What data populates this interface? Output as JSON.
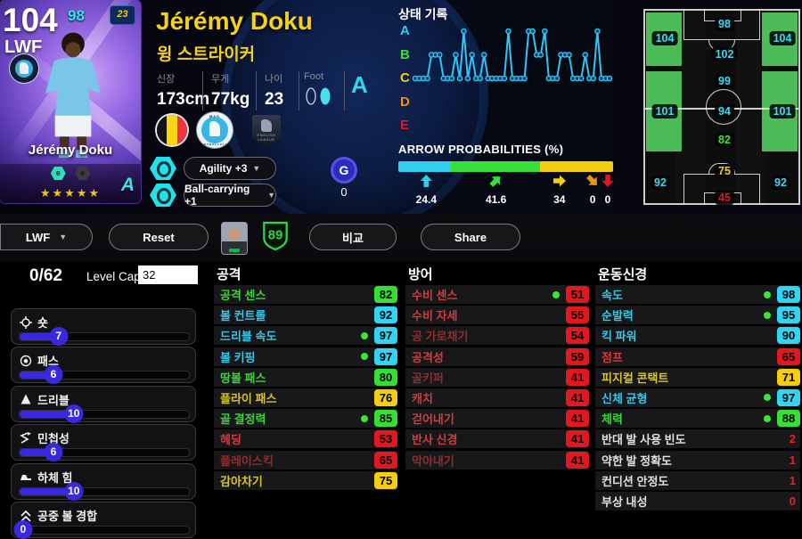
{
  "colors": {
    "cyan": "#3bd9f6",
    "green": "#45e23c",
    "yellow": "#f2d414",
    "red": "#e3171e",
    "red_dim": "#8f2d2d",
    "accent_blue": "#3a28e0"
  },
  "card": {
    "rating": "104",
    "boost_rating": "98",
    "position": "LWF",
    "player_name": "Jérémy Doku",
    "grade": "A",
    "stars": "★★★★★",
    "emblem": "23"
  },
  "header": {
    "name": "Jérémy Doku",
    "position_kr": "윙 스트라이커",
    "height_label": "신장",
    "height_value": "173cm",
    "weight_label": "무게",
    "weight_value": "77kg",
    "age_label": "나이",
    "age_value": "23",
    "foot_label": "Foot",
    "overall_grade": "A",
    "gp_letter": "G",
    "gp_value": "0",
    "club_badge_top": "MAS",
    "club_badge_bottom": "FOOTBALLCLUB",
    "league_badge_text": "ENGLISH LEAGUE",
    "skills": [
      {
        "label": "Agility +3"
      },
      {
        "label": "Ball-carrying +1"
      }
    ]
  },
  "condition": {
    "title": "상태 기록",
    "levels": [
      {
        "label": "A",
        "color": "#2fd0ee"
      },
      {
        "label": "B",
        "color": "#37e03a"
      },
      {
        "label": "C",
        "color": "#f2ce0d"
      },
      {
        "label": "D",
        "color": "#f0920e"
      },
      {
        "label": "E",
        "color": "#e3171e"
      }
    ],
    "history": [
      "C",
      "C",
      "C",
      "C",
      "B",
      "B",
      "B",
      "C",
      "C",
      "C",
      "B",
      "C",
      "A",
      "C",
      "B",
      "C",
      "C",
      "B",
      "C",
      "C",
      "C",
      "C",
      "C",
      "A",
      "C",
      "C",
      "C",
      "C",
      "A",
      "A",
      "B",
      "B",
      "A",
      "C",
      "C",
      "C",
      "B",
      "B",
      "B",
      "C",
      "C",
      "C",
      "B",
      "C",
      "C",
      "A",
      "C",
      "C",
      "C"
    ]
  },
  "arrow_probabilities": {
    "title": "ARROW PROBABILITIES (%)",
    "items": [
      {
        "direction": "up",
        "color": "#2fd0ee",
        "value": 24.4,
        "label": "24.4"
      },
      {
        "direction": "up-right",
        "color": "#37e03a",
        "value": 41.6,
        "label": "41.6"
      },
      {
        "direction": "right",
        "color": "#f2ce0d",
        "value": 34,
        "label": "34"
      },
      {
        "direction": "down-right",
        "color": "#f0920e",
        "value": 0,
        "label": "0"
      },
      {
        "direction": "down",
        "color": "#e3171e",
        "value": 0,
        "label": "0"
      }
    ]
  },
  "pitch": {
    "highlight_zones": [
      "left-wing-attack",
      "right-wing-attack",
      "left-wing-mid",
      "right-wing-mid"
    ],
    "ratings": [
      {
        "slot": "lw-front",
        "value": "104",
        "color": "cyan"
      },
      {
        "slot": "cf",
        "value": "98",
        "color": "cyan"
      },
      {
        "slot": "rw-front",
        "value": "104",
        "color": "cyan"
      },
      {
        "slot": "ss",
        "value": "102",
        "color": "cyan"
      },
      {
        "slot": "amf",
        "value": "99",
        "color": "cyan"
      },
      {
        "slot": "lmf",
        "value": "101",
        "color": "cyan"
      },
      {
        "slot": "cmf",
        "value": "94",
        "color": "cyan"
      },
      {
        "slot": "rmf",
        "value": "101",
        "color": "cyan"
      },
      {
        "slot": "dmf",
        "value": "82",
        "color": "green"
      },
      {
        "slot": "lb",
        "value": "92",
        "color": "cyan"
      },
      {
        "slot": "cb",
        "value": "75",
        "color": "yellow"
      },
      {
        "slot": "gk",
        "value": "45",
        "color": "red"
      },
      {
        "slot": "rb",
        "value": "92",
        "color": "cyan"
      }
    ]
  },
  "action_bar": {
    "position_selector": "LWF",
    "reset": "Reset",
    "team_rating": "89",
    "compare": "비교",
    "share": "Share"
  },
  "training": {
    "progress": "0/62",
    "level_cap_label": "Level Cap",
    "level_cap_value": "32",
    "sliders": [
      {
        "label": "숏",
        "value": 7,
        "icon": "shot-target-icon"
      },
      {
        "label": "패스",
        "value": 6,
        "icon": "pass-ball-icon"
      },
      {
        "label": "드리블",
        "value": 10,
        "icon": "dribble-cone-icon"
      },
      {
        "label": "민첩성",
        "value": 6,
        "icon": "agility-zigzag-icon"
      },
      {
        "label": "하체 힘",
        "value": 10,
        "icon": "leg-strength-boot-icon"
      },
      {
        "label": "공중 볼 경합",
        "value": 0,
        "icon": "aerial-chevrons-icon"
      }
    ]
  },
  "stats": {
    "columns": [
      {
        "title": "공격",
        "rows": [
          {
            "label": "공격 센스",
            "value": "82",
            "tier": "green",
            "label_tier": "green",
            "dot": false
          },
          {
            "label": "볼 컨트롤",
            "value": "92",
            "tier": "cyan",
            "label_tier": "cyan",
            "dot": false
          },
          {
            "label": "드리블 속도",
            "value": "97",
            "tier": "cyan",
            "label_tier": "cyan",
            "dot": true
          },
          {
            "label": "볼 키핑",
            "value": "97",
            "tier": "cyan",
            "label_tier": "cyan",
            "dot": true
          },
          {
            "label": "땅볼 패스",
            "value": "80",
            "tier": "green",
            "label_tier": "green",
            "dot": false
          },
          {
            "label": "플라이 패스",
            "value": "76",
            "tier": "yellow",
            "label_tier": "yellow",
            "dot": false
          },
          {
            "label": "골 결정력",
            "value": "85",
            "tier": "green",
            "label_tier": "green",
            "dot": true
          },
          {
            "label": "헤딩",
            "value": "53",
            "tier": "red",
            "label_tier": "red",
            "dot": false
          },
          {
            "label": "플레이스킥",
            "value": "65",
            "tier": "red",
            "label_tier": "red-dim",
            "dot": false
          },
          {
            "label": "감아차기",
            "value": "75",
            "tier": "yellow",
            "label_tier": "yellow",
            "dot": false
          }
        ]
      },
      {
        "title": "방어",
        "rows": [
          {
            "label": "수비 센스",
            "value": "51",
            "tier": "red",
            "label_tier": "red",
            "dot": true
          },
          {
            "label": "수비 자세",
            "value": "55",
            "tier": "red",
            "label_tier": "red",
            "dot": false
          },
          {
            "label": "공 가로채기",
            "value": "54",
            "tier": "red",
            "label_tier": "red-dim",
            "dot": false
          },
          {
            "label": "공격성",
            "value": "59",
            "tier": "red",
            "label_tier": "red",
            "dot": false
          },
          {
            "label": "골키퍼",
            "value": "41",
            "tier": "red",
            "label_tier": "red-dim",
            "dot": false
          },
          {
            "label": "캐치",
            "value": "41",
            "tier": "red",
            "label_tier": "red",
            "dot": false
          },
          {
            "label": "걷어내기",
            "value": "41",
            "tier": "red",
            "label_tier": "red",
            "dot": false
          },
          {
            "label": "반사 신경",
            "value": "41",
            "tier": "red",
            "label_tier": "red",
            "dot": false
          },
          {
            "label": "막아내기",
            "value": "41",
            "tier": "red",
            "label_tier": "red-dim",
            "dot": false
          }
        ]
      },
      {
        "title": "운동신경",
        "rows": [
          {
            "label": "속도",
            "value": "98",
            "tier": "cyan",
            "label_tier": "cyan",
            "dot": true
          },
          {
            "label": "순발력",
            "value": "95",
            "tier": "cyan",
            "label_tier": "cyan",
            "dot": true
          },
          {
            "label": "킥 파워",
            "value": "90",
            "tier": "cyan",
            "label_tier": "cyan",
            "dot": false
          },
          {
            "label": "점프",
            "value": "65",
            "tier": "red",
            "label_tier": "red",
            "dot": false
          },
          {
            "label": "피지컬 콘택트",
            "value": "71",
            "tier": "yellow",
            "label_tier": "yellow",
            "dot": false
          },
          {
            "label": "신체 균형",
            "value": "97",
            "tier": "cyan",
            "label_tier": "cyan",
            "dot": true
          },
          {
            "label": "체력",
            "value": "88",
            "tier": "green",
            "label_tier": "green",
            "dot": true
          },
          {
            "label": "반대 발 사용 빈도",
            "value": "2",
            "tier": "none",
            "label_tier": "white",
            "dot": false
          },
          {
            "label": "약한 발 정확도",
            "value": "1",
            "tier": "none",
            "label_tier": "white",
            "dot": false
          },
          {
            "label": "컨디션 안정도",
            "value": "1",
            "tier": "none",
            "label_tier": "white",
            "dot": false
          },
          {
            "label": "부상 내성",
            "value": "0",
            "tier": "none",
            "label_tier": "white",
            "dot": false
          }
        ]
      }
    ]
  }
}
